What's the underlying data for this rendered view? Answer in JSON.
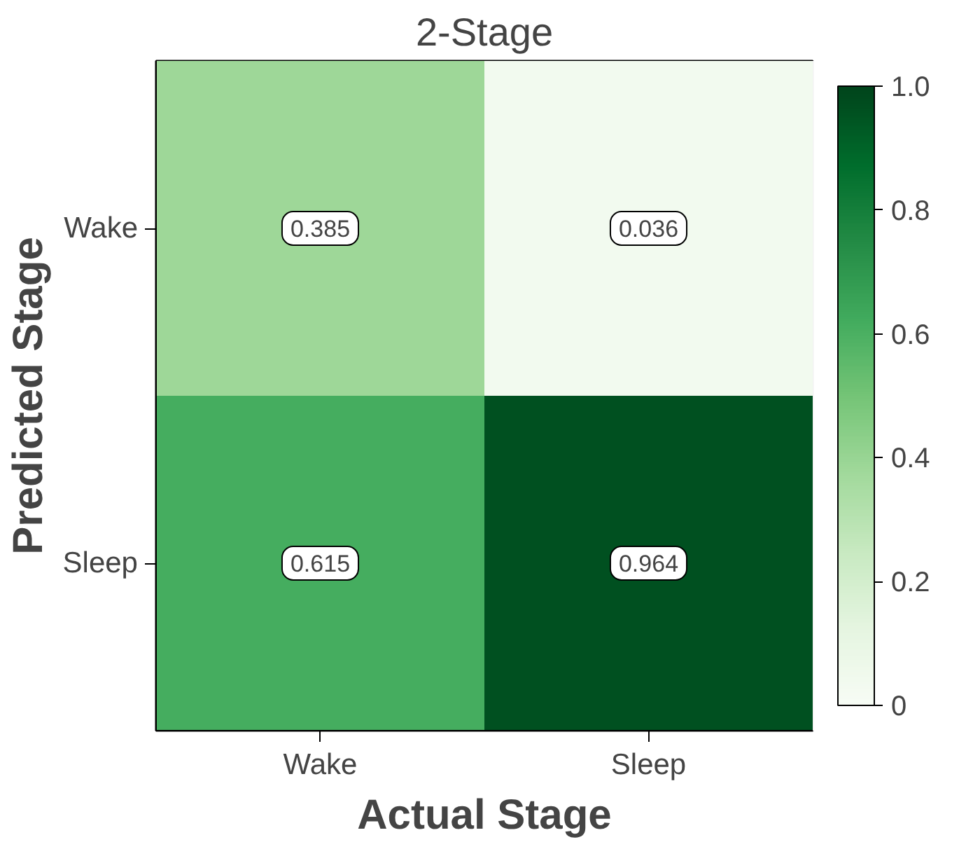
{
  "chart_data": {
    "type": "heatmap",
    "title": "2-Stage",
    "xlabel": "Actual Stage",
    "ylabel": "Predicted Stage",
    "categories": [
      "Wake",
      "Sleep"
    ],
    "y_categories": [
      "Wake",
      "Sleep"
    ],
    "cells": [
      [
        0.385,
        0.036
      ],
      [
        0.615,
        0.964
      ]
    ],
    "clim": [
      0,
      1
    ],
    "cticks": [
      {
        "value": 0,
        "label": "0"
      },
      0.2,
      0.4,
      0.6,
      0.8,
      {
        "value": 1,
        "label": "1.0"
      }
    ],
    "data_labels": true
  }
}
